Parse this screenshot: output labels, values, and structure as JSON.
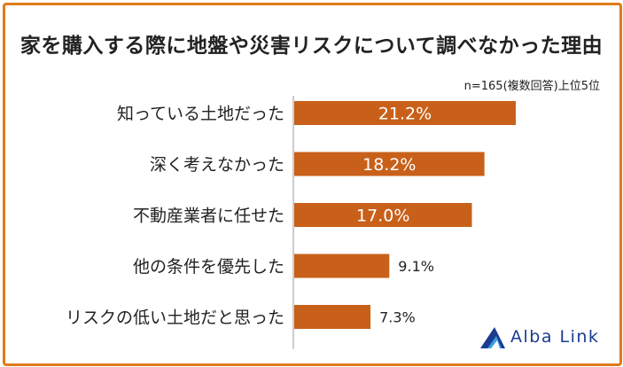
{
  "chart_data": {
    "type": "bar",
    "orientation": "horizontal",
    "title": "家を購入する際に地盤や災害リスクについて調べなかった理由",
    "note": "n=165(複数回答)上位5位",
    "categories": [
      "知っている土地だった",
      "深く考えなかった",
      "不動産業者に任せた",
      "他の条件を優先した",
      "リスクの低い土地だと思った"
    ],
    "values": [
      21.2,
      18.2,
      17.0,
      9.1,
      7.3
    ],
    "value_labels": [
      "21.2%",
      "18.2%",
      "17.0%",
      "9.1%",
      "7.3%"
    ],
    "xlim": [
      0,
      28
    ],
    "bar_color": "#c8601a",
    "grid": false,
    "legend": "none"
  },
  "branding": {
    "logo_text": "Alba Link",
    "logo_icon": "alba-link-triangle-icon"
  },
  "colors": {
    "frame": "#e07b1a",
    "bar": "#c8601a",
    "logo": "#1a3b8f"
  }
}
